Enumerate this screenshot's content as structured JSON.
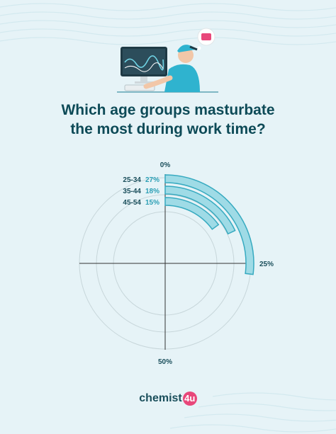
{
  "title_lines": [
    "Which age groups masturbate",
    "the most during work time?"
  ],
  "chart_data": {
    "type": "radial-bar",
    "title": "Which age groups masturbate the most during work time?",
    "scale_labels": [
      "0%",
      "25%",
      "50%"
    ],
    "categories": [
      "25-34",
      "35-44",
      "45-54"
    ],
    "values": [
      27,
      18,
      15
    ],
    "value_labels": [
      "27%",
      "18%",
      "15%"
    ],
    "max": 50,
    "colors": {
      "bar_fill": "#9fdbe6",
      "bar_stroke": "#37aac0",
      "label_value": "#2b9fb5",
      "label_group": "#1a4e5b",
      "axis": "#333333",
      "grid": "#c7d6da"
    }
  },
  "brand": {
    "word": "chemist",
    "badge": "4u"
  },
  "illustration": {
    "icon": "person-at-computer-illustration"
  }
}
